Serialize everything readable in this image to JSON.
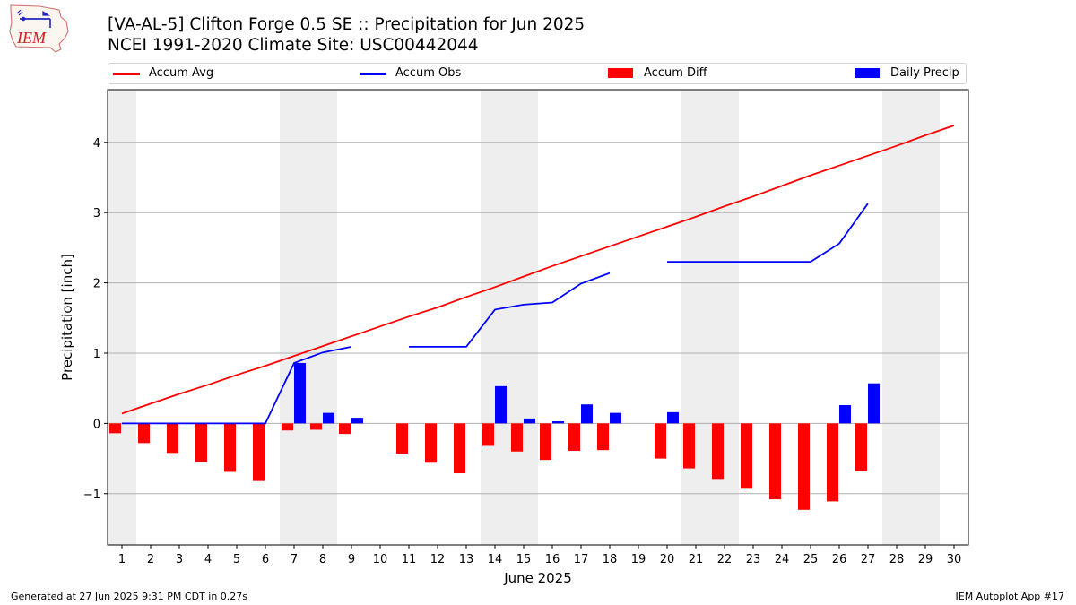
{
  "title_line1": "[VA-AL-5] Clifton Forge 0.5 SE :: Precipitation for Jun 2025",
  "title_line2": "NCEI 1991-2020 Climate Site: USC00442044",
  "logo_text": "IEM",
  "legend": [
    {
      "label": "Accum Avg",
      "color": "#ff0000",
      "kind": "line"
    },
    {
      "label": "Accum Obs",
      "color": "#0000ff",
      "kind": "line"
    },
    {
      "label": "Accum Diff",
      "color": "#ff0000",
      "kind": "bar"
    },
    {
      "label": "Daily Precip",
      "color": "#0000ff",
      "kind": "bar"
    }
  ],
  "footer_left": "Generated at 27 Jun 2025 9:31 PM CDT in 0.27s",
  "footer_right": "IEM Autoplot App #17",
  "chart_data": {
    "type": "bar",
    "xlabel": "June 2025",
    "ylabel": "Precipitation [inch]",
    "xlim": [
      0.5,
      30.5
    ],
    "ylim": [
      -1.73,
      4.75
    ],
    "yticks": [
      -1,
      0,
      1,
      2,
      3,
      4
    ],
    "ytick_labels": [
      "−1",
      "0",
      "1",
      "2",
      "3",
      "4"
    ],
    "days": [
      1,
      2,
      3,
      4,
      5,
      6,
      7,
      8,
      9,
      10,
      11,
      12,
      13,
      14,
      15,
      16,
      17,
      18,
      19,
      20,
      21,
      22,
      23,
      24,
      25,
      26,
      27,
      28,
      29,
      30
    ],
    "weekend_shading": [
      [
        0.5,
        1.5
      ],
      [
        6.5,
        8.5
      ],
      [
        13.5,
        15.5
      ],
      [
        20.5,
        22.5
      ],
      [
        27.5,
        29.5
      ]
    ],
    "grid": true,
    "series": [
      {
        "name": "Accum Avg",
        "kind": "line",
        "color": "#ff0000",
        "values": [
          0.14,
          0.28,
          0.42,
          0.55,
          0.69,
          0.82,
          0.96,
          1.1,
          1.24,
          1.38,
          1.52,
          1.65,
          1.8,
          1.94,
          2.09,
          2.24,
          2.38,
          2.52,
          2.66,
          2.8,
          2.94,
          3.09,
          3.23,
          3.38,
          3.53,
          3.67,
          3.81,
          3.95,
          4.1,
          4.24
        ]
      },
      {
        "name": "Accum Obs",
        "kind": "line",
        "color": "#0000ff",
        "values": [
          0.0,
          0.0,
          0.0,
          0.0,
          0.0,
          0.0,
          0.86,
          1.01,
          1.09,
          null,
          1.09,
          1.09,
          1.09,
          1.62,
          1.69,
          1.72,
          1.99,
          2.14,
          null,
          2.3,
          2.3,
          2.3,
          2.3,
          2.3,
          2.3,
          2.56,
          3.13,
          null,
          null,
          null
        ]
      },
      {
        "name": "Accum Diff",
        "kind": "bar",
        "color": "#ff0000",
        "values": [
          -0.14,
          -0.28,
          -0.42,
          -0.55,
          -0.69,
          -0.82,
          -0.1,
          -0.09,
          -0.15,
          null,
          -0.43,
          -0.56,
          -0.71,
          -0.32,
          -0.4,
          -0.52,
          -0.39,
          -0.38,
          null,
          -0.5,
          -0.64,
          -0.79,
          -0.93,
          -1.08,
          -1.23,
          -1.11,
          -0.68,
          null,
          null,
          null
        ]
      },
      {
        "name": "Daily Precip",
        "kind": "bar",
        "color": "#0000ff",
        "values": [
          0,
          0,
          0,
          0,
          0,
          0,
          0.86,
          0.15,
          0.08,
          null,
          0,
          0,
          0,
          0.53,
          0.07,
          0.03,
          0.27,
          0.15,
          null,
          0.16,
          0,
          0,
          0,
          0,
          0,
          0.26,
          0.57,
          null,
          null,
          null
        ]
      }
    ]
  }
}
